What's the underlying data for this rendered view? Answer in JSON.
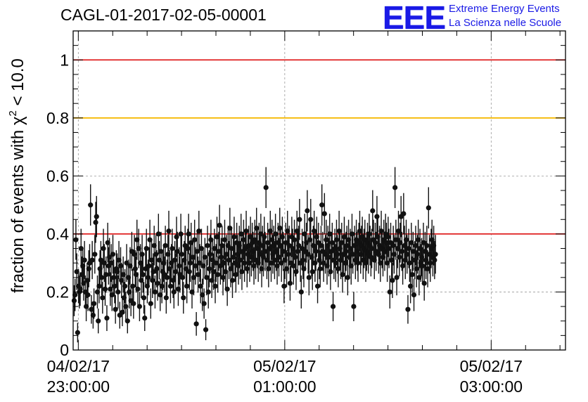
{
  "header": {
    "run_title": "CAGL-01-2017-02-05-00001",
    "logo_mark": "EEE",
    "logo_line1": "Extreme Energy Events",
    "logo_line2": "La Scienza nelle Scuole"
  },
  "colors": {
    "line_red": "#e02020",
    "line_yellow": "#f5b800",
    "marker": "#111111",
    "logo_blue": "#1a1ae6"
  },
  "chart_data": {
    "type": "scatter",
    "title": "CAGL-01-2017-02-05-00001",
    "xlabel": "",
    "ylabel_prefix": "fraction of events with ",
    "ylabel_symbol": "χ",
    "ylabel_sup": "2",
    "ylabel_suffix": " < 10.0",
    "ylim": [
      0,
      1.1
    ],
    "xlim_hours": [
      22.95,
      3.72
    ],
    "grid": true,
    "y_ticks": [
      {
        "value": 0,
        "label": "0"
      },
      {
        "value": 0.2,
        "label": "0.2"
      },
      {
        "value": 0.4,
        "label": "0.4"
      },
      {
        "value": 0.6,
        "label": "0.6"
      },
      {
        "value": 0.8,
        "label": "0.8"
      },
      {
        "value": 1,
        "label": "1"
      }
    ],
    "x_ticks": [
      {
        "hour": 23,
        "date": "04/02/17",
        "time": "23:00:00"
      },
      {
        "hour": 1,
        "date": "05/02/17",
        "time": "01:00:00"
      },
      {
        "hour": 3,
        "date": "05/02/17",
        "time": "03:00:00"
      }
    ],
    "reference_lines": [
      {
        "y": 1.0,
        "color": "#e02020"
      },
      {
        "y": 0.8,
        "color": "#f5b800"
      },
      {
        "y": 0.4,
        "color": "#e02020"
      }
    ],
    "series": [
      {
        "points_per_hour": 120,
        "error_scale": 0.45,
        "y": [
          0.17,
          0.19,
          0.38,
          0.27,
          0.06,
          0.22,
          0.2,
          0.21,
          0.35,
          0.26,
          0.29,
          0.23,
          0.31,
          0.2,
          0.15,
          0.24,
          0.19,
          0.28,
          0.3,
          0.5,
          0.14,
          0.31,
          0.12,
          0.16,
          0.33,
          0.44,
          0.46,
          0.2,
          0.1,
          0.22,
          0.28,
          0.31,
          0.25,
          0.18,
          0.35,
          0.3,
          0.21,
          0.26,
          0.11,
          0.37,
          0.29,
          0.32,
          0.21,
          0.3,
          0.19,
          0.33,
          0.25,
          0.22,
          0.14,
          0.28,
          0.27,
          0.2,
          0.31,
          0.12,
          0.29,
          0.24,
          0.13,
          0.26,
          0.18,
          0.22,
          0.15,
          0.3,
          0.1,
          0.25,
          0.2,
          0.29,
          0.17,
          0.34,
          0.22,
          0.16,
          0.33,
          0.28,
          0.26,
          0.38,
          0.21,
          0.35,
          0.15,
          0.3,
          0.24,
          0.33,
          0.26,
          0.18,
          0.11,
          0.28,
          0.35,
          0.22,
          0.25,
          0.29,
          0.38,
          0.16,
          0.31,
          0.24,
          0.27,
          0.36,
          0.2,
          0.33,
          0.28,
          0.23,
          0.4,
          0.31,
          0.19,
          0.34,
          0.22,
          0.27,
          0.3,
          0.26,
          0.36,
          0.18,
          0.25,
          0.33,
          0.41,
          0.28,
          0.22,
          0.3,
          0.35,
          0.24,
          0.2,
          0.31,
          0.27,
          0.39,
          0.34,
          0.21,
          0.29,
          0.26,
          0.4,
          0.33,
          0.25,
          0.18,
          0.31,
          0.36,
          0.28,
          0.22,
          0.35,
          0.4,
          0.27,
          0.3,
          0.37,
          0.2,
          0.32,
          0.25,
          0.38,
          0.29,
          0.09,
          0.34,
          0.26,
          0.41,
          0.3,
          0.22,
          0.35,
          0.19,
          0.29,
          0.16,
          0.32,
          0.07,
          0.25,
          0.36,
          0.2,
          0.28,
          0.33,
          0.38,
          0.24,
          0.31,
          0.27,
          0.35,
          0.22,
          0.3,
          0.39,
          0.26,
          0.34,
          0.43,
          0.29,
          0.32,
          0.36,
          0.25,
          0.3,
          0.38,
          0.27,
          0.33,
          0.21,
          0.36,
          0.31,
          0.42,
          0.28,
          0.35,
          0.24,
          0.32,
          0.39,
          0.3,
          0.26,
          0.37,
          0.33,
          0.29,
          0.36,
          0.31,
          0.4,
          0.27,
          0.34,
          0.38,
          0.3,
          0.35,
          0.41,
          0.28,
          0.33,
          0.36,
          0.3,
          0.39,
          0.32,
          0.37,
          0.34,
          0.29,
          0.38,
          0.31,
          0.42,
          0.35,
          0.3,
          0.37,
          0.33,
          0.4,
          0.28,
          0.36,
          0.32,
          0.39,
          0.34,
          0.56,
          0.31,
          0.37,
          0.28,
          0.35,
          0.41,
          0.3,
          0.38,
          0.33,
          0.36,
          0.31,
          0.4,
          0.34,
          0.29,
          0.37,
          0.32,
          0.42,
          0.36,
          0.3,
          0.39,
          0.34,
          0.22,
          0.31,
          0.37,
          0.28,
          0.41,
          0.33,
          0.36,
          0.23,
          0.3,
          0.39,
          0.35,
          0.29,
          0.38,
          0.32,
          0.27,
          0.41,
          0.34,
          0.36,
          0.45,
          0.3,
          0.2,
          0.35,
          0.31,
          0.28,
          0.4,
          0.34,
          0.37,
          0.48,
          0.33,
          0.25,
          0.38,
          0.45,
          0.32,
          0.27,
          0.36,
          0.41,
          0.3,
          0.34,
          0.39,
          0.22,
          0.37,
          0.31,
          0.28,
          0.36,
          0.5,
          0.34,
          0.3,
          0.47,
          0.33,
          0.38,
          0.29,
          0.36,
          0.32,
          0.4,
          0.27,
          0.34,
          0.37,
          0.15,
          0.31,
          0.35,
          0.3,
          0.38,
          0.33,
          0.28,
          0.41,
          0.35,
          0.31,
          0.37,
          0.26,
          0.33,
          0.39,
          0.3,
          0.34,
          0.36,
          0.25,
          0.38,
          0.32,
          0.35,
          0.29,
          0.4,
          0.33,
          0.15,
          0.36,
          0.31,
          0.38,
          0.34,
          0.3,
          0.37,
          0.41,
          0.33,
          0.36,
          0.39,
          0.31,
          0.35,
          0.38,
          0.3,
          0.34,
          0.37,
          0.33,
          0.4,
          0.36,
          0.32,
          0.35,
          0.48,
          0.38,
          0.31,
          0.37,
          0.34,
          0.46,
          0.39,
          0.33,
          0.36,
          0.3,
          0.41,
          0.35,
          0.32,
          0.38,
          0.34,
          0.4,
          0.37,
          0.3,
          0.39,
          0.35,
          0.2,
          0.37,
          0.31,
          0.24,
          0.36,
          0.33,
          0.56,
          0.38,
          0.25,
          0.35,
          0.41,
          0.32,
          0.37,
          0.46,
          0.34,
          0.29,
          0.47,
          0.36,
          0.31,
          0.38,
          0.33,
          0.14,
          0.35,
          0.3,
          0.22,
          0.37,
          0.26,
          0.34,
          0.19,
          0.31,
          0.36,
          0.28,
          0.33,
          0.38,
          0.25,
          0.35,
          0.3,
          0.32,
          0.29,
          0.37,
          0.23,
          0.34,
          0.31,
          0.36,
          0.28,
          0.49,
          0.33,
          0.3,
          0.35,
          0.38,
          0.32,
          0.36,
          0.31,
          0.33
        ]
      }
    ]
  }
}
